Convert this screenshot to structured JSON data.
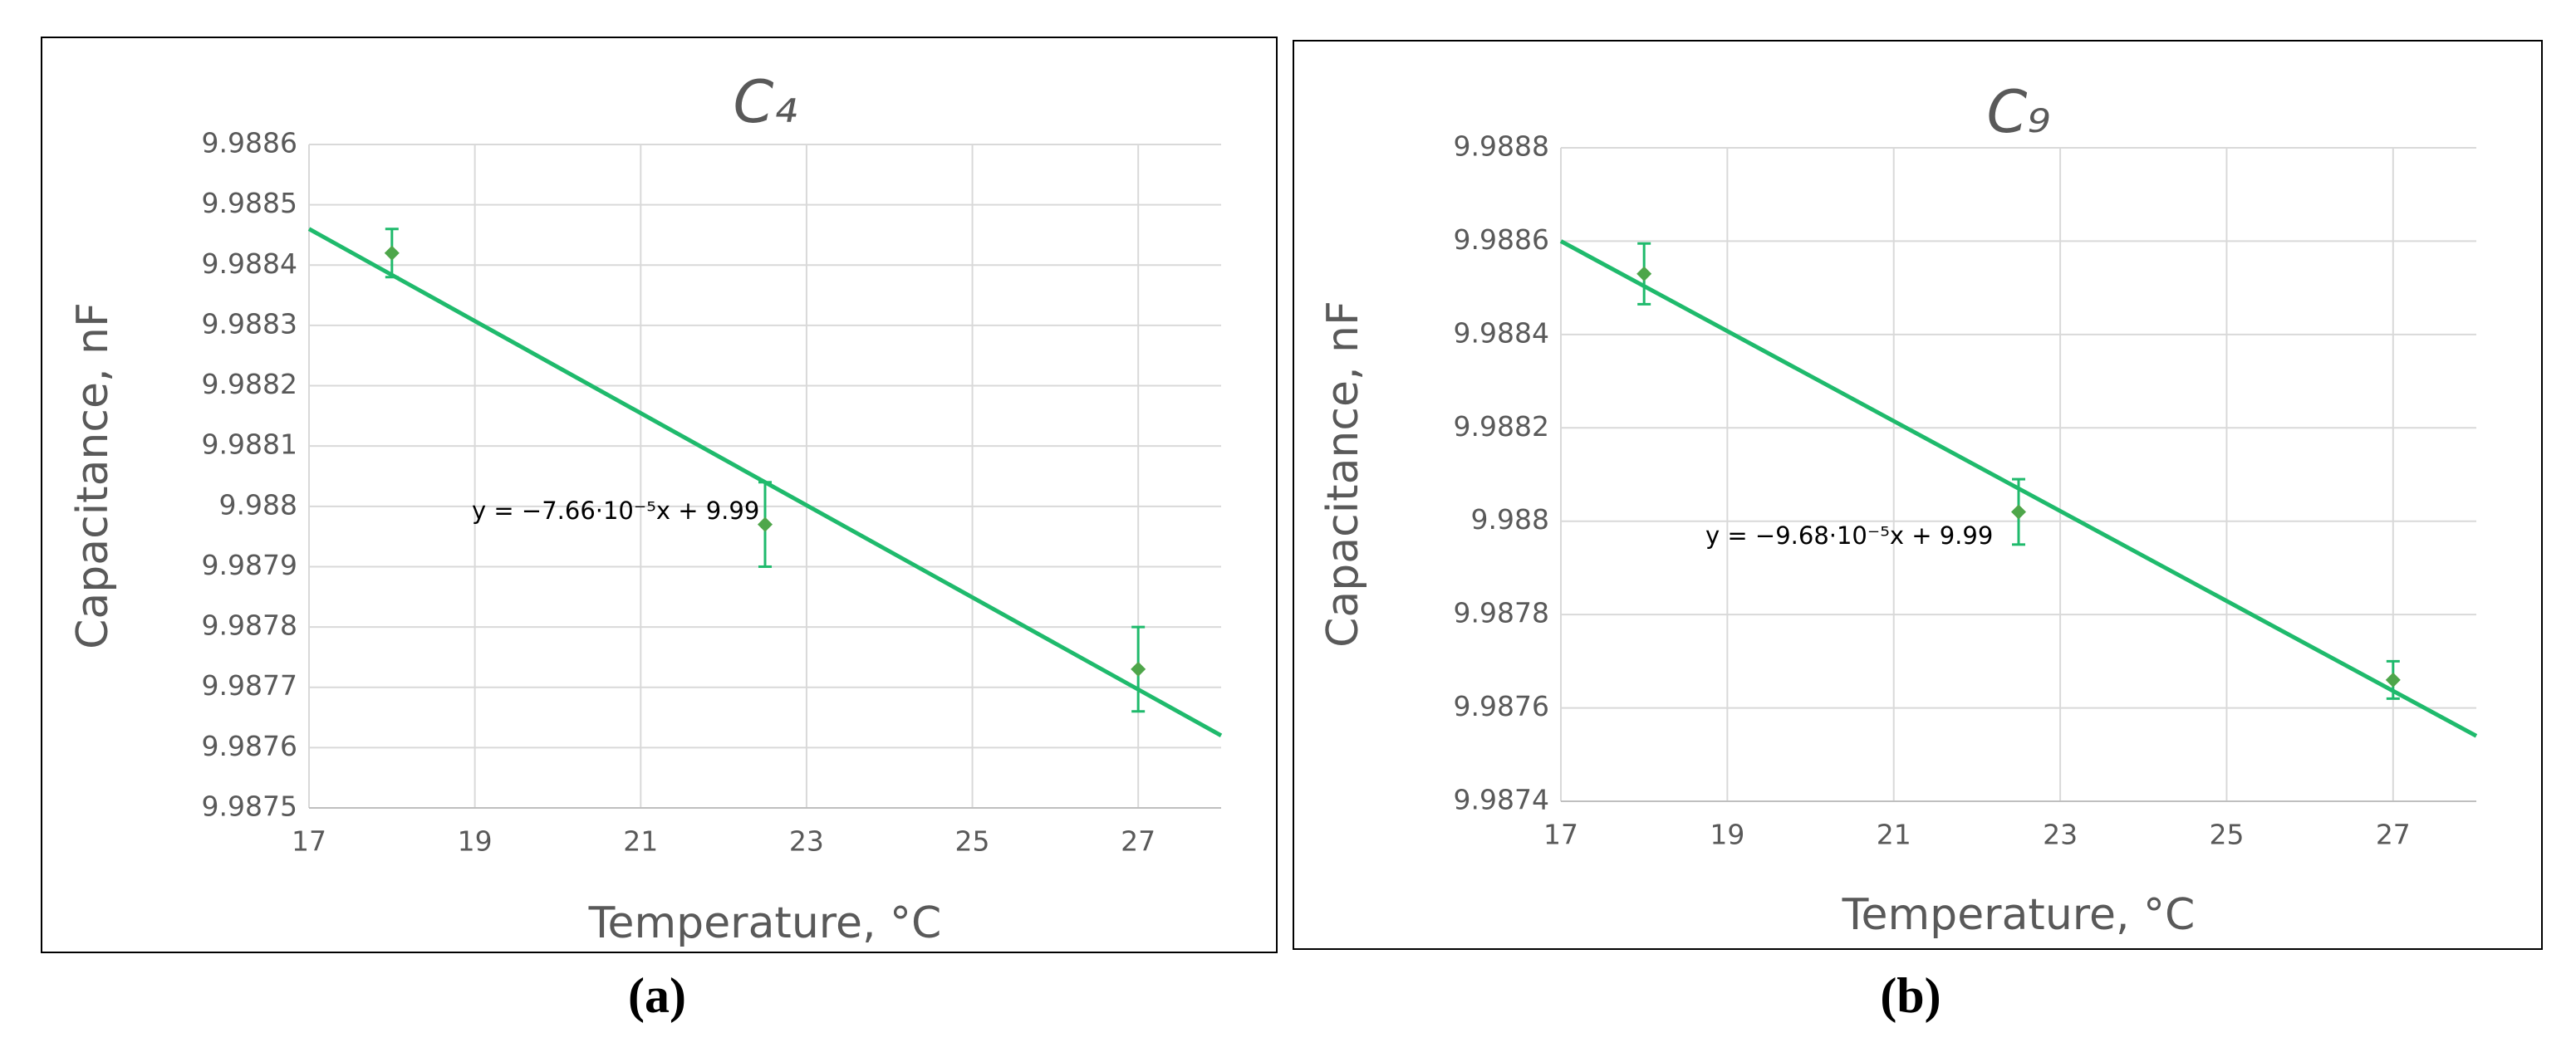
{
  "chart_data": [
    {
      "type": "scatter",
      "title": "C₄",
      "panel_label": "(a)",
      "x_label": "Temperature, °C",
      "y_label": "Capacitance, nF",
      "x": [
        18,
        22.5,
        27
      ],
      "values": [
        9.98842,
        9.98797,
        9.98773
      ],
      "errors": [
        4e-05,
        7e-05,
        7e-05
      ],
      "color": "#4ea64a",
      "trendline": {
        "x": [
          17,
          28
        ],
        "values": [
          9.98846,
          9.98762
        ],
        "color": "#1fba6c",
        "label": "y = −7.66·10⁻⁵x + 9.99"
      },
      "xlim": [
        17,
        28
      ],
      "xticks": [
        17,
        19,
        21,
        23,
        25,
        27
      ],
      "ylim": [
        9.9875,
        9.9886
      ],
      "yticks": [
        9.9875,
        9.9876,
        9.9877,
        9.9878,
        9.9879,
        9.988,
        9.9881,
        9.9882,
        9.9883,
        9.9884,
        9.9885,
        9.9886
      ],
      "grid": true
    },
    {
      "type": "scatter",
      "title": "C₉",
      "panel_label": "(b)",
      "x_label": "Temperature, °C",
      "y_label": "Capacitance, nF",
      "x": [
        18,
        22.5,
        27
      ],
      "values": [
        9.98853,
        9.98802,
        9.98766
      ],
      "errors": [
        6.5e-05,
        7e-05,
        4e-05
      ],
      "color": "#4ea64a",
      "trendline": {
        "x": [
          17,
          28
        ],
        "values": [
          9.9886,
          9.98754
        ],
        "color": "#1fba6c",
        "label": "y = −9.68·10⁻⁵x + 9.99"
      },
      "xlim": [
        17,
        28
      ],
      "xticks": [
        17,
        19,
        21,
        23,
        25,
        27
      ],
      "ylim": [
        9.9874,
        9.9888
      ],
      "yticks": [
        9.9874,
        9.9876,
        9.9878,
        9.988,
        9.9882,
        9.9884,
        9.9886,
        9.9888
      ],
      "grid": true
    }
  ]
}
